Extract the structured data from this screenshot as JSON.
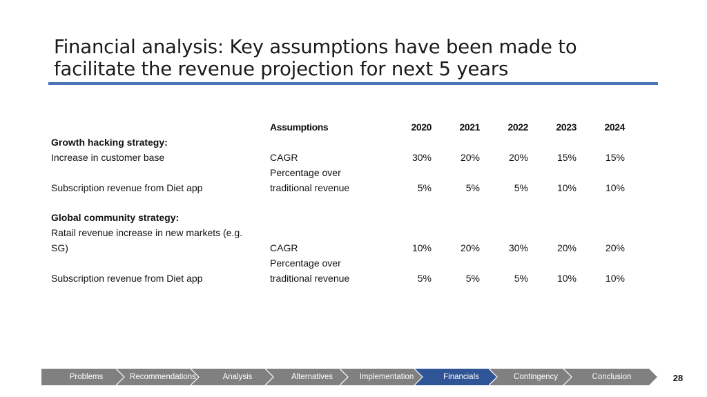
{
  "title": {
    "line1": "Financial analysis: Key assumptions have been made to",
    "line2": "facilitate the revenue projection for next 5 years"
  },
  "table": {
    "header": {
      "assumptions": "Assumptions",
      "years": [
        "2020",
        "2021",
        "2022",
        "2023",
        "2024"
      ]
    },
    "groups": [
      {
        "heading": "Growth hacking strategy:",
        "rows": [
          {
            "label_lines": [
              "Increase in customer base"
            ],
            "assumption_lines": [
              "CAGR"
            ],
            "values": [
              "30%",
              "20%",
              "20%",
              "15%",
              "15%"
            ]
          },
          {
            "label_lines": [
              "Subscription revenue from Diet app"
            ],
            "assumption_lines": [
              "Percentage over",
              "traditional revenue"
            ],
            "values": [
              "5%",
              "5%",
              "5%",
              "10%",
              "10%"
            ]
          }
        ]
      },
      {
        "heading": "Global community strategy:",
        "rows": [
          {
            "label_lines": [
              "Ratail revenue increase in new markets (e.g.",
              "SG)"
            ],
            "assumption_lines": [
              "CAGR"
            ],
            "values": [
              "10%",
              "20%",
              "30%",
              "20%",
              "20%"
            ]
          },
          {
            "label_lines": [
              "Subscription revenue from Diet app"
            ],
            "assumption_lines": [
              "Percentage over",
              "traditional revenue"
            ],
            "values": [
              "5%",
              "5%",
              "5%",
              "10%",
              "10%"
            ]
          }
        ]
      }
    ]
  },
  "nav": {
    "items": [
      "Problems",
      "Recommendations",
      "Analysis",
      "Alternatives",
      "Implementation",
      "Financials",
      "Contingency",
      "Conclusion"
    ],
    "active": "Financials",
    "colors": {
      "inactive": "#808080",
      "active": "#2f5597",
      "text": "#ffffff"
    }
  },
  "page_number": "28",
  "colors": {
    "title_rule": "#4a74b3"
  }
}
